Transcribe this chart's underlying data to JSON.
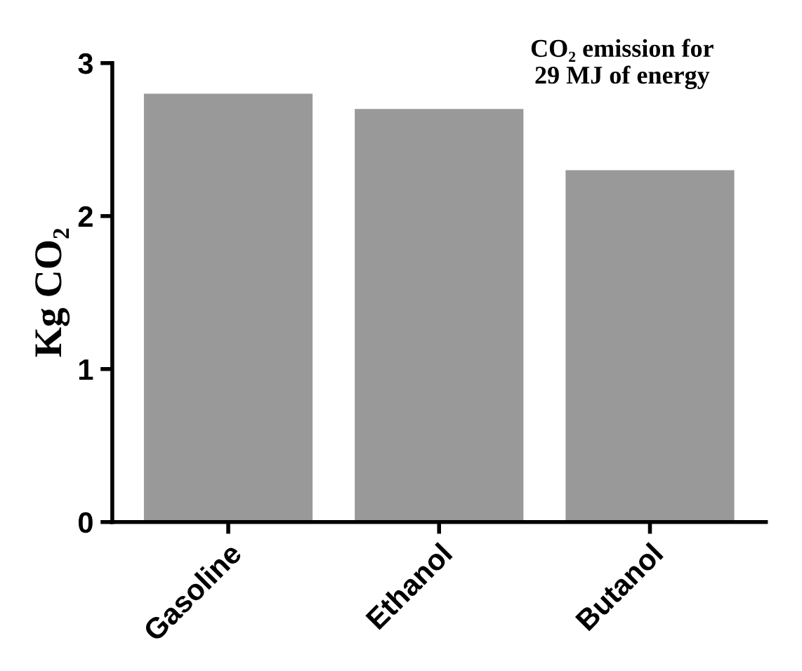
{
  "chart_data": {
    "type": "bar",
    "title": "CO₂ emission for\n29 MJ of energy",
    "ylabel": "Kg CO₂",
    "categories": [
      "Gasoline",
      "Ethanol",
      "Butanol"
    ],
    "values": [
      2.8,
      2.7,
      2.3
    ],
    "color": "#999999",
    "ylim": [
      0,
      3
    ],
    "yticks": [
      0,
      1,
      2,
      3
    ],
    "grid": false,
    "legend": false
  }
}
